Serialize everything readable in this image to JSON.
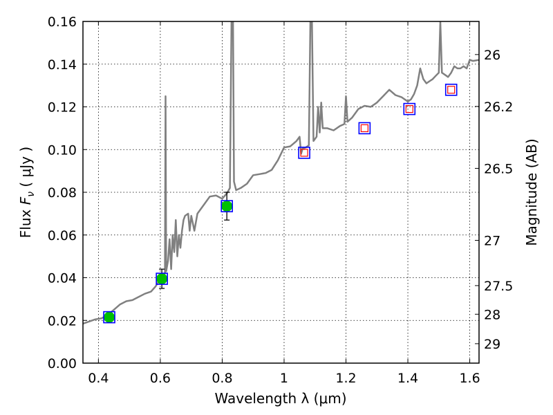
{
  "chart_data": {
    "type": "line",
    "xlabel": "Wavelength  λ (μm)",
    "ylabel": "Flux  F_ν  ( μJy )",
    "ylabel_parts": {
      "prefix": "Flux  ",
      "symbol": "F",
      "subscript": "ν",
      "suffix": "  ( μJy )"
    },
    "ylabel_right": "Magnitude (AB)",
    "xlim": [
      0.35,
      1.63
    ],
    "ylim": [
      0.0,
      0.16
    ],
    "grid": true,
    "x_ticks": [
      0.4,
      0.6,
      0.8,
      1.0,
      1.2,
      1.4,
      1.6
    ],
    "x_tick_labels": [
      "0.4",
      "0.6",
      "0.8",
      "1",
      "1.2",
      "1.4",
      "1.6"
    ],
    "y_ticks": [
      0.0,
      0.02,
      0.04,
      0.06,
      0.08,
      0.1,
      0.12,
      0.14,
      0.16
    ],
    "y_tick_labels": [
      "0.00",
      "0.02",
      "0.04",
      "0.06",
      "0.08",
      "0.10",
      "0.12",
      "0.14",
      "0.16"
    ],
    "magnitude_ticks": [
      {
        "label": "26",
        "flux": 0.1445
      },
      {
        "label": "26.2",
        "flux": 0.1202
      },
      {
        "label": "26.5",
        "flux": 0.0912
      },
      {
        "label": "27",
        "flux": 0.0575
      },
      {
        "label": "27.5",
        "flux": 0.0363
      },
      {
        "label": "28",
        "flux": 0.0229
      },
      {
        "label": "29",
        "flux": 0.0091
      }
    ],
    "series": [
      {
        "name": "model spectrum",
        "kind": "line",
        "color": "#808080",
        "points": [
          [
            0.35,
            0.0185
          ],
          [
            0.37,
            0.0195
          ],
          [
            0.39,
            0.0205
          ],
          [
            0.41,
            0.021
          ],
          [
            0.43,
            0.0225
          ],
          [
            0.45,
            0.025
          ],
          [
            0.47,
            0.0275
          ],
          [
            0.49,
            0.029
          ],
          [
            0.51,
            0.0295
          ],
          [
            0.53,
            0.031
          ],
          [
            0.55,
            0.0325
          ],
          [
            0.57,
            0.0335
          ],
          [
            0.585,
            0.036
          ],
          [
            0.6,
            0.0395
          ],
          [
            0.61,
            0.041
          ],
          [
            0.615,
            0.042
          ],
          [
            0.617,
            0.125
          ],
          [
            0.619,
            0.043
          ],
          [
            0.625,
            0.048
          ],
          [
            0.63,
            0.058
          ],
          [
            0.635,
            0.044
          ],
          [
            0.64,
            0.06
          ],
          [
            0.645,
            0.052
          ],
          [
            0.65,
            0.067
          ],
          [
            0.655,
            0.05
          ],
          [
            0.66,
            0.06
          ],
          [
            0.665,
            0.054
          ],
          [
            0.67,
            0.062
          ],
          [
            0.675,
            0.067
          ],
          [
            0.68,
            0.069
          ],
          [
            0.69,
            0.07
          ],
          [
            0.695,
            0.062
          ],
          [
            0.7,
            0.069
          ],
          [
            0.71,
            0.062
          ],
          [
            0.72,
            0.07
          ],
          [
            0.74,
            0.074
          ],
          [
            0.76,
            0.078
          ],
          [
            0.78,
            0.0785
          ],
          [
            0.8,
            0.077
          ],
          [
            0.815,
            0.0795
          ],
          [
            0.825,
            0.082
          ],
          [
            0.83,
            0.16
          ],
          [
            0.835,
            0.16
          ],
          [
            0.838,
            0.085
          ],
          [
            0.845,
            0.081
          ],
          [
            0.86,
            0.082
          ],
          [
            0.88,
            0.084
          ],
          [
            0.9,
            0.088
          ],
          [
            0.92,
            0.0885
          ],
          [
            0.94,
            0.089
          ],
          [
            0.96,
            0.0905
          ],
          [
            0.98,
            0.095
          ],
          [
            1.0,
            0.101
          ],
          [
            1.02,
            0.1015
          ],
          [
            1.04,
            0.104
          ],
          [
            1.05,
            0.106
          ],
          [
            1.055,
            0.098
          ],
          [
            1.06,
            0.1005
          ],
          [
            1.07,
            0.101
          ],
          [
            1.08,
            0.102
          ],
          [
            1.085,
            0.16
          ],
          [
            1.09,
            0.16
          ],
          [
            1.095,
            0.104
          ],
          [
            1.105,
            0.106
          ],
          [
            1.11,
            0.12
          ],
          [
            1.115,
            0.108
          ],
          [
            1.12,
            0.122
          ],
          [
            1.125,
            0.11
          ],
          [
            1.14,
            0.11
          ],
          [
            1.16,
            0.109
          ],
          [
            1.18,
            0.111
          ],
          [
            1.195,
            0.112
          ],
          [
            1.2,
            0.125
          ],
          [
            1.205,
            0.113
          ],
          [
            1.22,
            0.115
          ],
          [
            1.24,
            0.119
          ],
          [
            1.26,
            0.1205
          ],
          [
            1.28,
            0.12
          ],
          [
            1.3,
            0.122
          ],
          [
            1.32,
            0.125
          ],
          [
            1.34,
            0.128
          ],
          [
            1.36,
            0.1255
          ],
          [
            1.38,
            0.1245
          ],
          [
            1.4,
            0.1225
          ],
          [
            1.41,
            0.1235
          ],
          [
            1.42,
            0.126
          ],
          [
            1.43,
            0.13
          ],
          [
            1.44,
            0.138
          ],
          [
            1.45,
            0.133
          ],
          [
            1.46,
            0.131
          ],
          [
            1.47,
            0.132
          ],
          [
            1.48,
            0.133
          ],
          [
            1.49,
            0.1345
          ],
          [
            1.5,
            0.136
          ],
          [
            1.505,
            0.16
          ],
          [
            1.51,
            0.136
          ],
          [
            1.52,
            0.135
          ],
          [
            1.53,
            0.134
          ],
          [
            1.54,
            0.136
          ],
          [
            1.55,
            0.139
          ],
          [
            1.56,
            0.138
          ],
          [
            1.57,
            0.138
          ],
          [
            1.58,
            0.139
          ],
          [
            1.59,
            0.138
          ],
          [
            1.6,
            0.142
          ],
          [
            1.61,
            0.1415
          ],
          [
            1.63,
            0.142
          ]
        ]
      },
      {
        "name": "photometry model (blue squares)",
        "kind": "square",
        "color": "#0000ff",
        "points": [
          [
            0.435,
            0.0215
          ],
          [
            0.605,
            0.0395
          ],
          [
            0.815,
            0.0735
          ],
          [
            1.065,
            0.0985
          ],
          [
            1.26,
            0.11
          ],
          [
            1.405,
            0.119
          ],
          [
            1.54,
            0.128
          ]
        ]
      },
      {
        "name": "observed detections (green circles)",
        "kind": "circle",
        "color": "#00c000",
        "points": [
          [
            0.435,
            0.0215
          ],
          [
            0.605,
            0.0395
          ],
          [
            0.815,
            0.0735
          ]
        ],
        "errors": [
          0.0,
          0.0045,
          0.0065
        ]
      },
      {
        "name": "upper limits (red squares)",
        "kind": "small-square",
        "color": "#ff0000",
        "points": [
          [
            1.065,
            0.0985
          ],
          [
            1.26,
            0.11
          ],
          [
            1.405,
            0.119
          ],
          [
            1.54,
            0.128
          ]
        ]
      }
    ]
  }
}
